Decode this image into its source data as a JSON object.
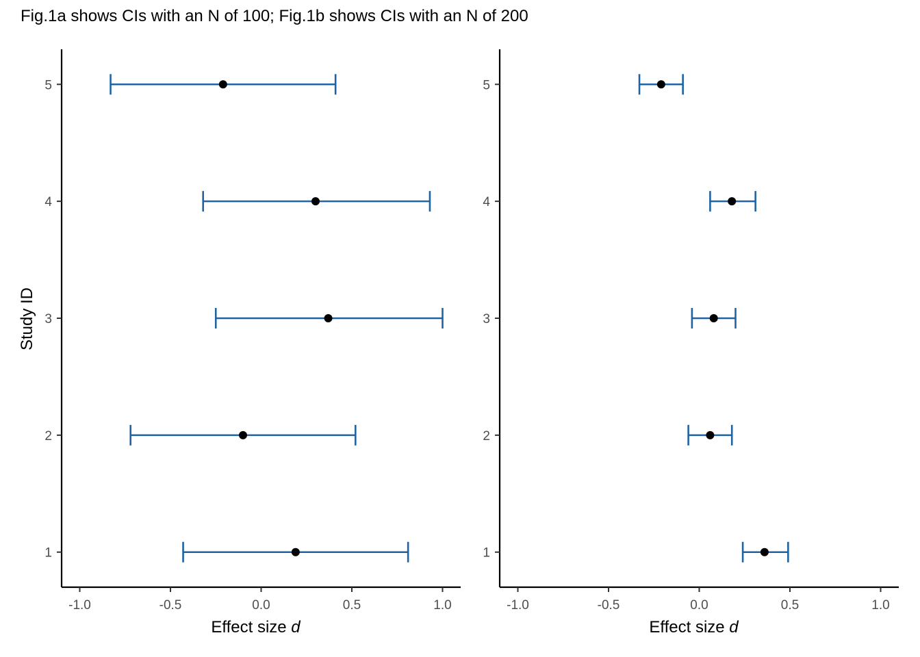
{
  "title": "Fig.1a shows CIs with an N of 100; Fig.1b shows CIs with an N of 200",
  "ylabel": "Study ID",
  "colors": {
    "ci": "#1f63a3",
    "point": "#000000",
    "axis": "#000000"
  },
  "chart_data": [
    {
      "type": "errorbar",
      "panel": "Fig.1a",
      "xlabel": "Effect size d",
      "xlabel_main": "Effect size ",
      "xlabel_italic": "d",
      "xlim": [
        -1.1,
        1.1
      ],
      "ylim": [
        0.7,
        5.3
      ],
      "xticks": [
        -1.0,
        -0.5,
        0.0,
        0.5,
        1.0
      ],
      "xtick_labels": [
        "-1.0",
        "-0.5",
        "0.0",
        "0.5",
        "1.0"
      ],
      "yticks": [
        1,
        2,
        3,
        4,
        5
      ],
      "ytick_labels": [
        "1",
        "2",
        "3",
        "4",
        "5"
      ],
      "grid": false,
      "points": [
        {
          "study": 1,
          "estimate": 0.19,
          "lower": -0.43,
          "upper": 0.81
        },
        {
          "study": 2,
          "estimate": -0.1,
          "lower": -0.72,
          "upper": 0.52
        },
        {
          "study": 3,
          "estimate": 0.37,
          "lower": -0.25,
          "upper": 1.0
        },
        {
          "study": 4,
          "estimate": 0.3,
          "lower": -0.32,
          "upper": 0.93
        },
        {
          "study": 5,
          "estimate": -0.21,
          "lower": -0.83,
          "upper": 0.41
        }
      ]
    },
    {
      "type": "errorbar",
      "panel": "Fig.1b",
      "xlabel": "Effect size d",
      "xlabel_main": "Effect size ",
      "xlabel_italic": "d",
      "xlim": [
        -1.1,
        1.1
      ],
      "ylim": [
        0.7,
        5.3
      ],
      "xticks": [
        -1.0,
        -0.5,
        0.0,
        0.5,
        1.0
      ],
      "xtick_labels": [
        "-1.0",
        "-0.5",
        "0.0",
        "0.5",
        "1.0"
      ],
      "yticks": [
        1,
        2,
        3,
        4,
        5
      ],
      "ytick_labels": [
        "1",
        "2",
        "3",
        "4",
        "5"
      ],
      "grid": false,
      "points": [
        {
          "study": 1,
          "estimate": 0.36,
          "lower": 0.24,
          "upper": 0.49
        },
        {
          "study": 2,
          "estimate": 0.06,
          "lower": -0.06,
          "upper": 0.18
        },
        {
          "study": 3,
          "estimate": 0.08,
          "lower": -0.04,
          "upper": 0.2
        },
        {
          "study": 4,
          "estimate": 0.18,
          "lower": 0.06,
          "upper": 0.31
        },
        {
          "study": 5,
          "estimate": -0.21,
          "lower": -0.33,
          "upper": -0.09
        }
      ]
    }
  ]
}
